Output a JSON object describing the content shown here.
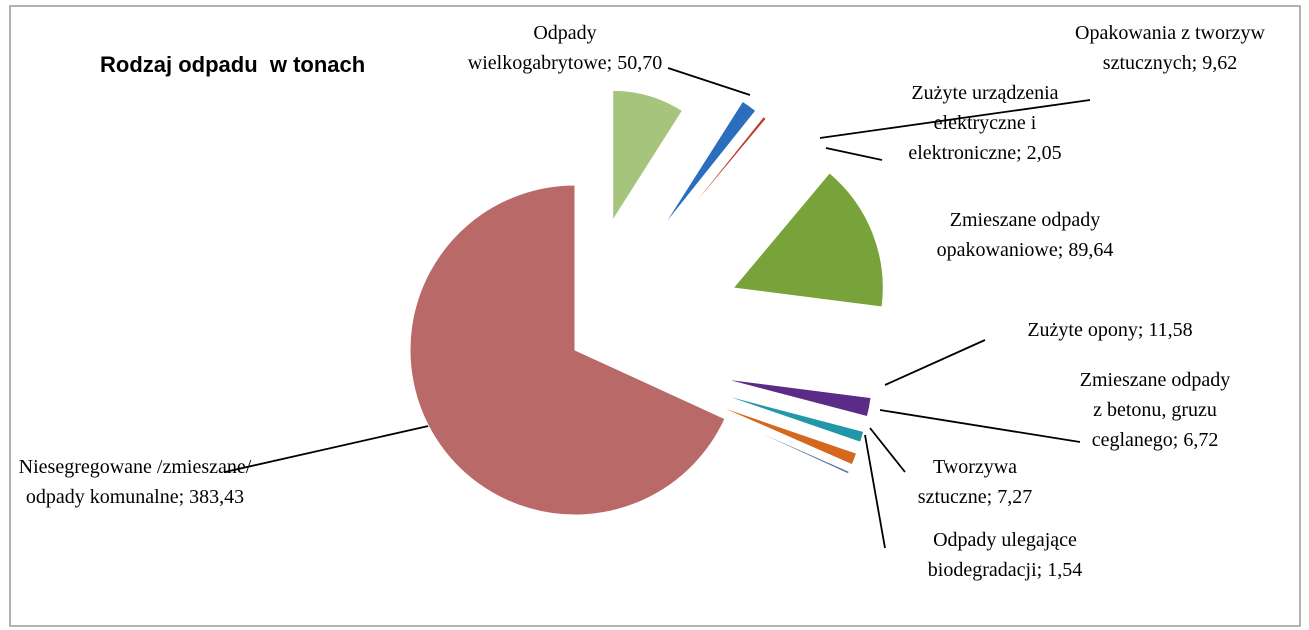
{
  "chart_data": {
    "type": "pie",
    "title": "Rodzaj odpadu  w tonach",
    "categories": [
      "Odpady wielkogabrytowe;",
      "Opakowania z tworzyw sztucznych;",
      "Zużyte urządzenia elektryczne i elektroniczne;",
      "Zmieszane odpady opakowaniowe;",
      "Zużyte opony;",
      "Zmieszane odpady z betonu, gruzu ceglanego;",
      "Tworzywa sztuczne;",
      "Odpady ulegające biodegradacji;",
      "Niesegregowane /zmieszane/ odpady komunalne;"
    ],
    "values": [
      50.7,
      9.62,
      2.05,
      89.64,
      11.58,
      6.72,
      7.27,
      1.54,
      383.43
    ],
    "value_labels": [
      "50,70",
      "9,62",
      "2,05",
      "89,64",
      "11,58",
      "6,72",
      "7,27",
      "1,54",
      "383,43"
    ],
    "colors": [
      "#a6c47c",
      "#2a6ebd",
      "#c0392b",
      "#77a33a",
      "#5b2c87",
      "#2098a8",
      "#d4681c",
      "#4f6f9f",
      "#b96a68"
    ]
  }
}
